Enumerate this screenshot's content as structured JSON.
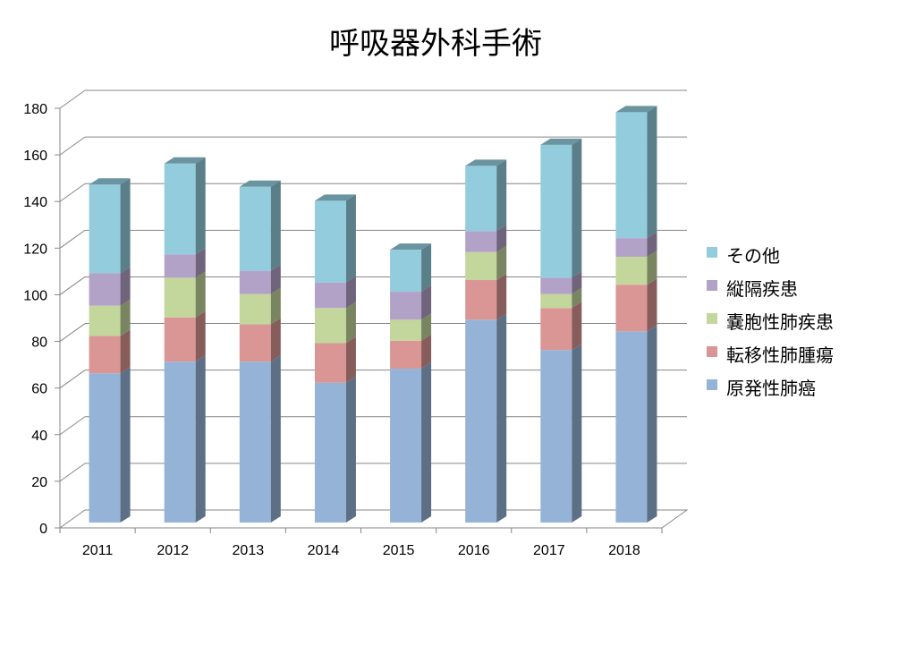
{
  "chart_data": {
    "type": "bar",
    "stacked": true,
    "three_d": true,
    "title": "呼吸器外科手術",
    "categories": [
      "2011",
      "2012",
      "2013",
      "2014",
      "2015",
      "2016",
      "2017",
      "2018"
    ],
    "ylim": [
      0,
      180
    ],
    "yticks": [
      0,
      20,
      40,
      60,
      80,
      100,
      120,
      140,
      160,
      180
    ],
    "grid": true,
    "legend_position": "right",
    "series": [
      {
        "name": "原発性肺癌",
        "color": "#95b3d7",
        "values": [
          64,
          69,
          69,
          60,
          66,
          87,
          74,
          82
        ]
      },
      {
        "name": "転移性肺腫瘍",
        "color": "#d99694",
        "values": [
          16,
          19,
          16,
          17,
          12,
          17,
          18,
          20
        ]
      },
      {
        "name": "嚢胞性肺疾患",
        "color": "#c3d69b",
        "values": [
          13,
          17,
          13,
          15,
          9,
          12,
          6,
          12
        ]
      },
      {
        "name": "縦隔疾患",
        "color": "#b3a2c7",
        "values": [
          14,
          10,
          10,
          11,
          12,
          9,
          7,
          8
        ]
      },
      {
        "name": "その他",
        "color": "#93cddd",
        "values": [
          38,
          39,
          36,
          35,
          18,
          28,
          57,
          54
        ]
      }
    ]
  }
}
